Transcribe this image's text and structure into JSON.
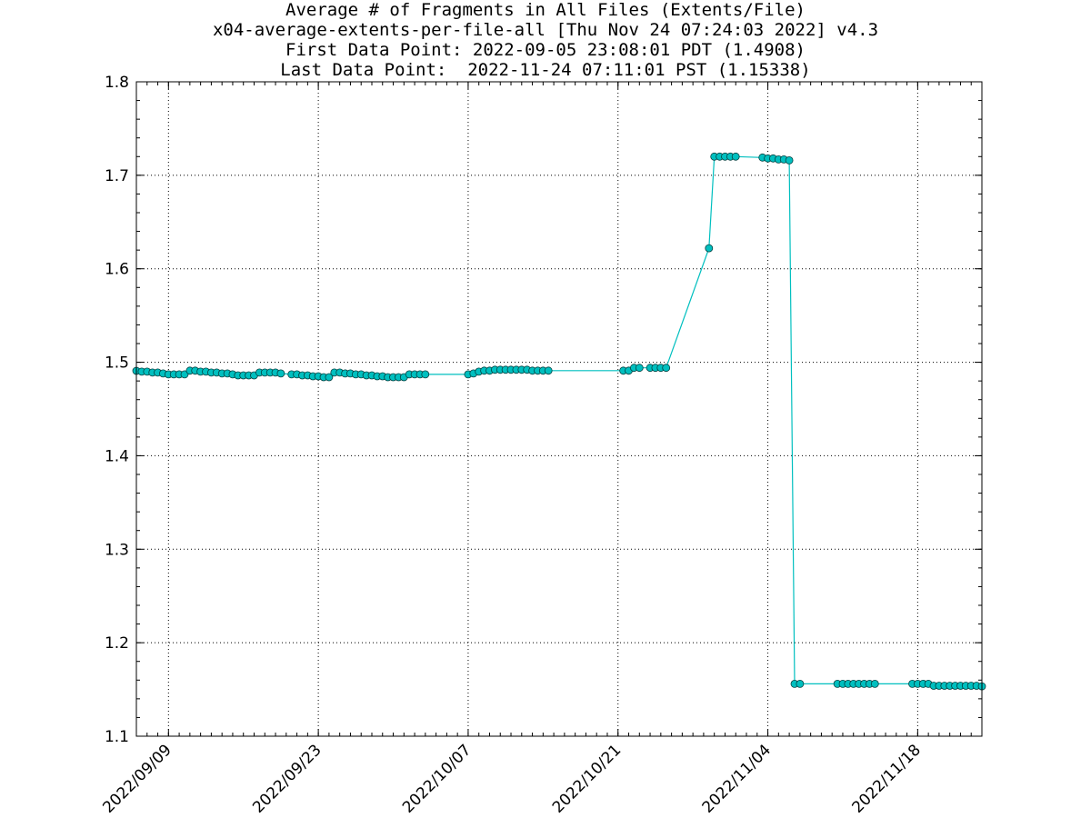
{
  "title_lines": [
    "Average # of Fragments in All Files (Extents/File)",
    "x04-average-extents-per-file-all [Thu Nov 24 07:24:03 2022] v4.3",
    "First Data Point: 2022-09-05 23:08:01 PDT (1.4908)",
    "Last Data Point:  2022-11-24 07:11:01 PST (1.15338)"
  ],
  "colors": {
    "series": "#00bfbf",
    "marker_fill": "#00bfbf",
    "marker_edge": "#004040",
    "grid": "#000000"
  },
  "chart_data": {
    "type": "line",
    "title": "Average # of Fragments in All Files (Extents/File)",
    "xlabel": "",
    "ylabel": "",
    "ylim": [
      1.1,
      1.8
    ],
    "xlim": [
      "2022-09-06",
      "2022-11-24"
    ],
    "yticks": [
      "1.1",
      "1.2",
      "1.3",
      "1.4",
      "1.5",
      "1.6",
      "1.7",
      "1.8"
    ],
    "xticks": [
      "2022/09/09",
      "2022/09/23",
      "2022/10/07",
      "2022/10/21",
      "2022/11/04",
      "2022/11/18"
    ],
    "grid": true,
    "series": [
      {
        "marker": "circle",
        "points": [
          [
            "2022-09-06 00:00",
            1.4908
          ],
          [
            "2022-09-06 12:00",
            1.49
          ],
          [
            "2022-09-07 00:00",
            1.49
          ],
          [
            "2022-09-07 12:00",
            1.489
          ],
          [
            "2022-09-08 00:00",
            1.489
          ],
          [
            "2022-09-08 12:00",
            1.488
          ],
          [
            "2022-09-09 00:00",
            1.487
          ],
          [
            "2022-09-09 12:00",
            1.487
          ],
          [
            "2022-09-10 00:00",
            1.487
          ],
          [
            "2022-09-10 12:00",
            1.487
          ],
          [
            "2022-09-11 00:00",
            1.491
          ],
          [
            "2022-09-11 12:00",
            1.491
          ],
          [
            "2022-09-12 00:00",
            1.49
          ],
          [
            "2022-09-12 12:00",
            1.49
          ],
          [
            "2022-09-13 00:00",
            1.489
          ],
          [
            "2022-09-13 12:00",
            1.489
          ],
          [
            "2022-09-14 00:00",
            1.488
          ],
          [
            "2022-09-14 12:00",
            1.488
          ],
          [
            "2022-09-15 00:00",
            1.487
          ],
          [
            "2022-09-15 12:00",
            1.486
          ],
          [
            "2022-09-16 00:00",
            1.486
          ],
          [
            "2022-09-16 12:00",
            1.486
          ],
          [
            "2022-09-17 00:00",
            1.486
          ],
          [
            "2022-09-17 12:00",
            1.489
          ],
          [
            "2022-09-18 00:00",
            1.489
          ],
          [
            "2022-09-18 12:00",
            1.489
          ],
          [
            "2022-09-19 00:00",
            1.489
          ],
          [
            "2022-09-19 12:00",
            1.488
          ],
          [
            "2022-09-20 12:00",
            1.487
          ],
          [
            "2022-09-21 00:00",
            1.487
          ],
          [
            "2022-09-21 12:00",
            1.486
          ],
          [
            "2022-09-22 00:00",
            1.486
          ],
          [
            "2022-09-22 12:00",
            1.485
          ],
          [
            "2022-09-23 00:00",
            1.485
          ],
          [
            "2022-09-23 12:00",
            1.484
          ],
          [
            "2022-09-24 00:00",
            1.484
          ],
          [
            "2022-09-24 12:00",
            1.489
          ],
          [
            "2022-09-25 00:00",
            1.489
          ],
          [
            "2022-09-25 12:00",
            1.488
          ],
          [
            "2022-09-26 00:00",
            1.488
          ],
          [
            "2022-09-26 12:00",
            1.487
          ],
          [
            "2022-09-27 00:00",
            1.487
          ],
          [
            "2022-09-27 12:00",
            1.486
          ],
          [
            "2022-09-28 00:00",
            1.486
          ],
          [
            "2022-09-28 12:00",
            1.485
          ],
          [
            "2022-09-29 00:00",
            1.485
          ],
          [
            "2022-09-29 12:00",
            1.484
          ],
          [
            "2022-09-30 00:00",
            1.484
          ],
          [
            "2022-09-30 12:00",
            1.484
          ],
          [
            "2022-10-01 00:00",
            1.484
          ],
          [
            "2022-10-01 12:00",
            1.487
          ],
          [
            "2022-10-02 00:00",
            1.487
          ],
          [
            "2022-10-02 12:00",
            1.487
          ],
          [
            "2022-10-03 00:00",
            1.487
          ],
          [
            "2022-10-07 00:00",
            1.487
          ],
          [
            "2022-10-07 12:00",
            1.488
          ],
          [
            "2022-10-08 00:00",
            1.49
          ],
          [
            "2022-10-08 12:00",
            1.491
          ],
          [
            "2022-10-09 00:00",
            1.491
          ],
          [
            "2022-10-09 12:00",
            1.492
          ],
          [
            "2022-10-10 00:00",
            1.492
          ],
          [
            "2022-10-10 12:00",
            1.492
          ],
          [
            "2022-10-11 00:00",
            1.492
          ],
          [
            "2022-10-11 12:00",
            1.492
          ],
          [
            "2022-10-12 00:00",
            1.492
          ],
          [
            "2022-10-12 12:00",
            1.492
          ],
          [
            "2022-10-13 00:00",
            1.491
          ],
          [
            "2022-10-13 12:00",
            1.491
          ],
          [
            "2022-10-14 00:00",
            1.491
          ],
          [
            "2022-10-14 12:00",
            1.491
          ],
          [
            "2022-10-21 12:00",
            1.491
          ],
          [
            "2022-10-22 00:00",
            1.491
          ],
          [
            "2022-10-22 12:00",
            1.494
          ],
          [
            "2022-10-23 00:00",
            1.494
          ],
          [
            "2022-10-24 00:00",
            1.494
          ],
          [
            "2022-10-24 12:00",
            1.494
          ],
          [
            "2022-10-25 00:00",
            1.494
          ],
          [
            "2022-10-25 12:00",
            1.494
          ],
          [
            "2022-10-29 12:00",
            1.622
          ],
          [
            "2022-10-30 00:00",
            1.72
          ],
          [
            "2022-10-30 12:00",
            1.72
          ],
          [
            "2022-10-31 00:00",
            1.72
          ],
          [
            "2022-10-31 12:00",
            1.72
          ],
          [
            "2022-11-01 00:00",
            1.72
          ],
          [
            "2022-11-03 12:00",
            1.719
          ],
          [
            "2022-11-04 00:00",
            1.718
          ],
          [
            "2022-11-04 12:00",
            1.718
          ],
          [
            "2022-11-05 00:00",
            1.717
          ],
          [
            "2022-11-05 12:00",
            1.717
          ],
          [
            "2022-11-06 00:00",
            1.716
          ],
          [
            "2022-11-06 12:00",
            1.156
          ],
          [
            "2022-11-07 00:00",
            1.156
          ],
          [
            "2022-11-10 12:00",
            1.156
          ],
          [
            "2022-11-11 00:00",
            1.156
          ],
          [
            "2022-11-11 12:00",
            1.156
          ],
          [
            "2022-11-12 00:00",
            1.156
          ],
          [
            "2022-11-12 12:00",
            1.156
          ],
          [
            "2022-11-13 00:00",
            1.156
          ],
          [
            "2022-11-13 12:00",
            1.156
          ],
          [
            "2022-11-14 00:00",
            1.156
          ],
          [
            "2022-11-17 12:00",
            1.156
          ],
          [
            "2022-11-18 00:00",
            1.156
          ],
          [
            "2022-11-18 12:00",
            1.156
          ],
          [
            "2022-11-19 00:00",
            1.156
          ],
          [
            "2022-11-19 12:00",
            1.154
          ],
          [
            "2022-11-20 00:00",
            1.154
          ],
          [
            "2022-11-20 12:00",
            1.154
          ],
          [
            "2022-11-21 00:00",
            1.154
          ],
          [
            "2022-11-21 12:00",
            1.154
          ],
          [
            "2022-11-22 00:00",
            1.154
          ],
          [
            "2022-11-22 12:00",
            1.154
          ],
          [
            "2022-11-23 00:00",
            1.154
          ],
          [
            "2022-11-23 12:00",
            1.154
          ],
          [
            "2022-11-24 00:00",
            1.15338
          ]
        ]
      }
    ]
  }
}
